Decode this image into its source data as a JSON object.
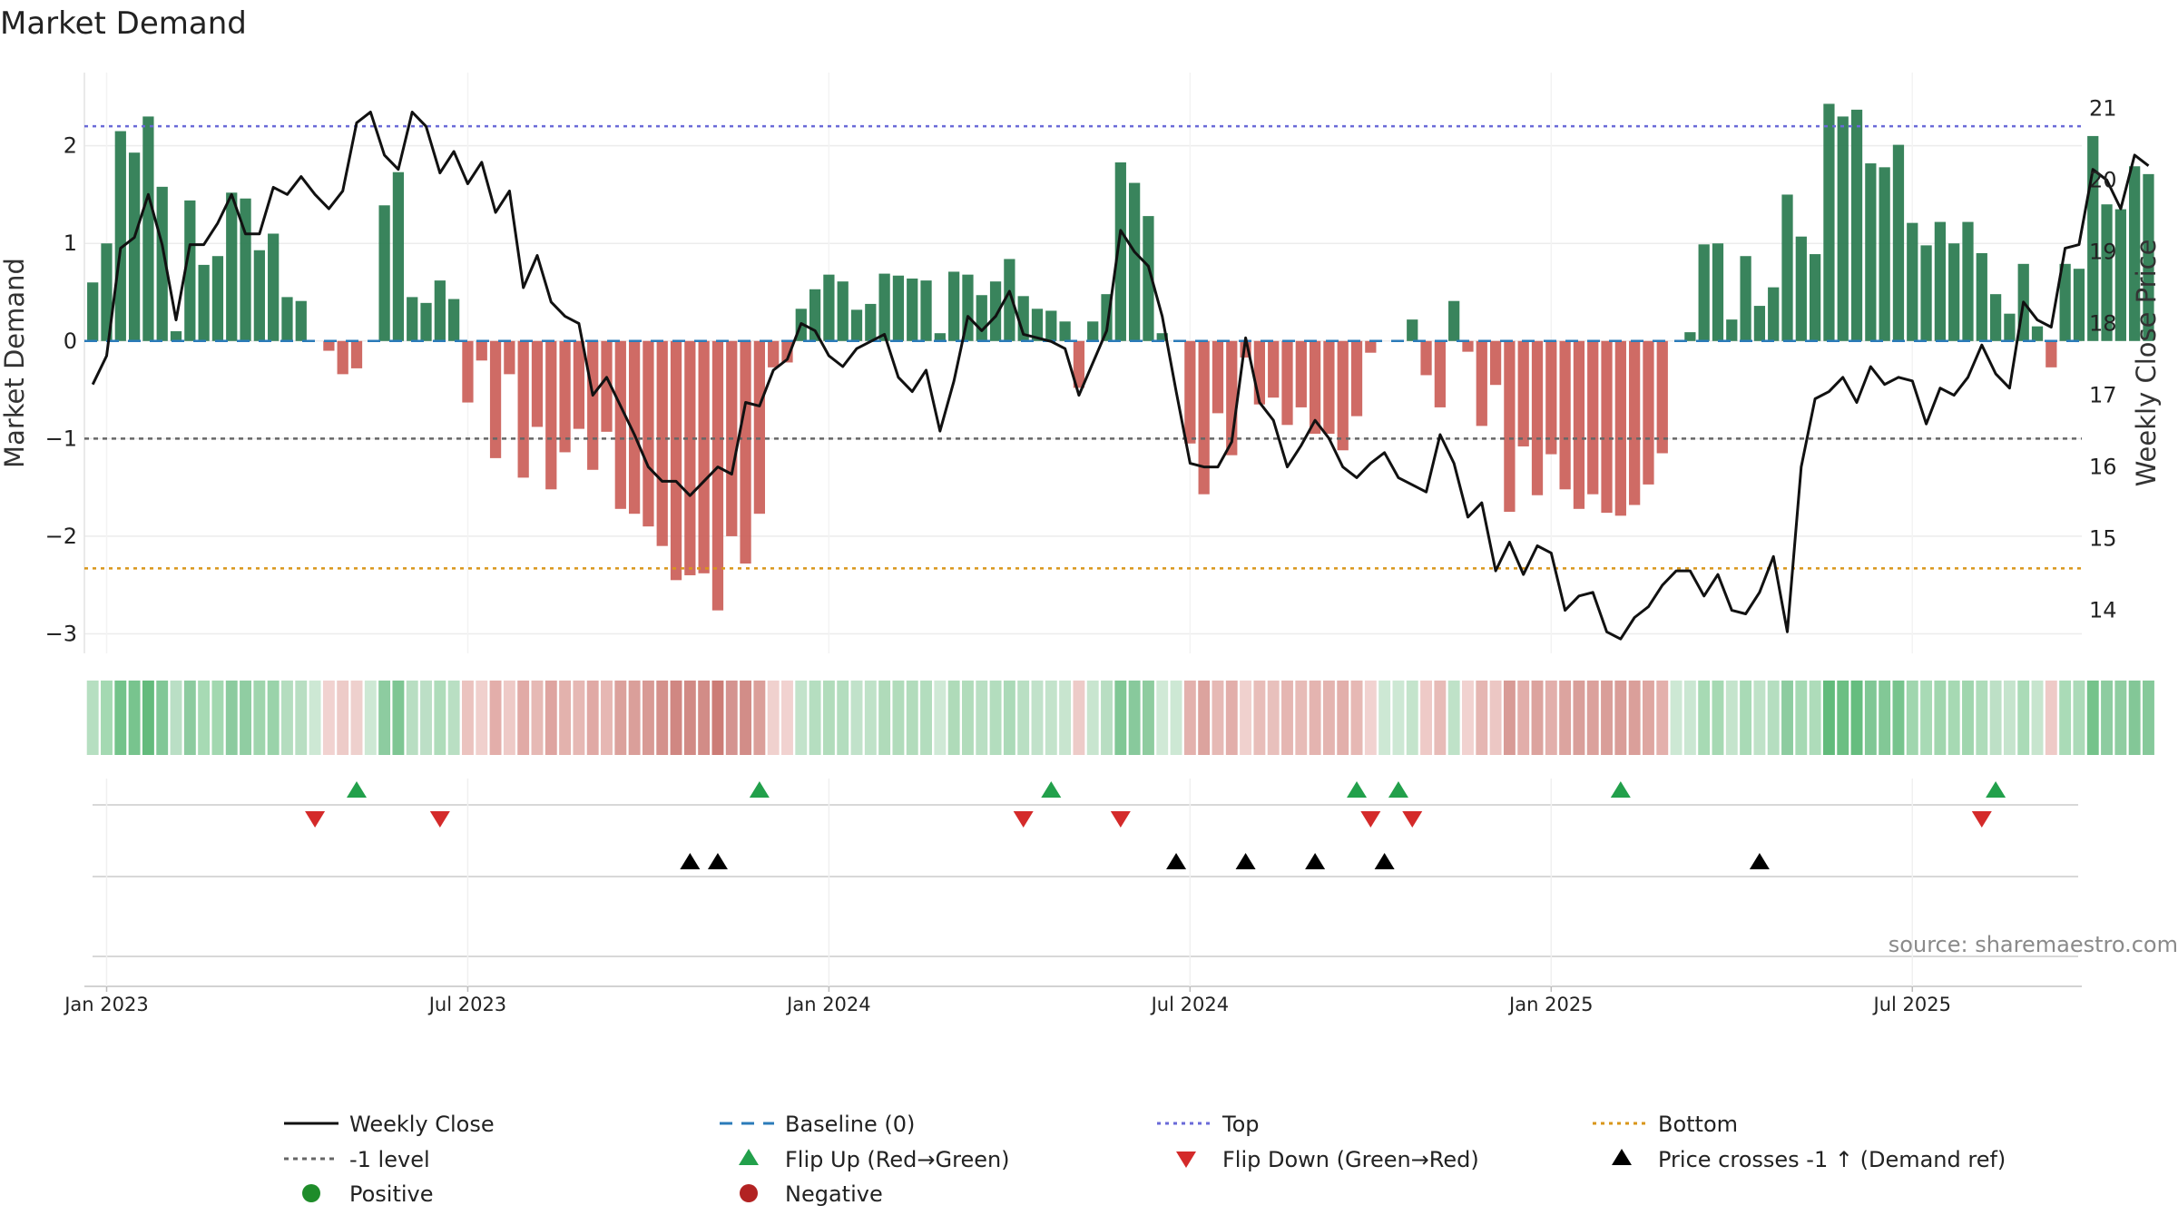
{
  "chart_data": {
    "type": "bar+line",
    "title": "Market Demand",
    "ylabel_left": "Market Demand",
    "ylabel_right": "Weekly Close Price",
    "source": "source: sharemaestro.com",
    "left_axis": {
      "ticks": [
        2,
        1,
        0,
        -1,
        -2,
        -3
      ],
      "tick_labels": [
        "2",
        "1",
        "0",
        "−1",
        "−2",
        "−3"
      ],
      "ylim": [
        -3.2,
        2.75
      ]
    },
    "right_axis": {
      "ticks": [
        21,
        20,
        19,
        18,
        17,
        16,
        15,
        14
      ],
      "tick_labels": [
        "21",
        "20",
        "19",
        "18",
        "17",
        "16",
        "15",
        "14"
      ],
      "ylim": [
        13.4,
        21.5
      ]
    },
    "x_ticks": [
      {
        "week": 1,
        "label": "Jan 2023"
      },
      {
        "week": 27,
        "label": "Jul 2023"
      },
      {
        "week": 53,
        "label": "Jan 2024"
      },
      {
        "week": 79,
        "label": "Jul 2024"
      },
      {
        "week": 105,
        "label": "Jan 2025"
      },
      {
        "week": 131,
        "label": "Jul 2025"
      }
    ],
    "x_range_weeks": [
      -0.6,
      143.2
    ],
    "reference_lines": {
      "baseline": 0,
      "top": 2.2,
      "minus_one": -1,
      "bottom": -2.33
    },
    "demand": [
      0.6,
      1.0,
      2.15,
      1.93,
      2.3,
      1.58,
      0.1,
      1.44,
      0.78,
      0.87,
      1.52,
      1.46,
      0.93,
      1.1,
      0.45,
      0.41,
      0.0,
      -0.1,
      -0.34,
      -0.28,
      0.0,
      1.39,
      1.73,
      0.45,
      0.39,
      0.62,
      0.43,
      -0.63,
      -0.2,
      -1.2,
      -0.34,
      -1.4,
      -0.88,
      -1.52,
      -1.14,
      -0.9,
      -1.32,
      -0.93,
      -1.72,
      -1.77,
      -1.9,
      -2.1,
      -2.45,
      -2.4,
      -2.38,
      -2.76,
      -2.0,
      -2.28,
      -1.77,
      -0.27,
      -0.22,
      0.33,
      0.53,
      0.68,
      0.61,
      0.32,
      0.38,
      0.69,
      0.67,
      0.64,
      0.62,
      0.08,
      0.71,
      0.68,
      0.47,
      0.61,
      0.84,
      0.46,
      0.33,
      0.31,
      0.2,
      -0.48,
      0.2,
      0.48,
      1.83,
      1.62,
      1.28,
      0.08,
      0.0,
      -1.05,
      -1.57,
      -0.74,
      -1.17,
      -0.17,
      -0.65,
      -0.58,
      -0.86,
      -0.68,
      -0.95,
      -0.95,
      -1.12,
      -0.77,
      -0.12,
      0.0,
      0.0,
      0.22,
      -0.35,
      -0.68,
      0.41,
      -0.11,
      -0.87,
      -0.45,
      -1.75,
      -1.08,
      -1.58,
      -1.16,
      -1.52,
      -1.72,
      -1.57,
      -1.76,
      -1.79,
      -1.68,
      -1.47,
      -1.15,
      0.0,
      0.09,
      0.99,
      1.0,
      0.22,
      0.87,
      0.36,
      0.55,
      1.5,
      1.07,
      0.89,
      2.43,
      2.3,
      2.37,
      1.82,
      1.78,
      2.01,
      1.21,
      0.98,
      1.22,
      1.0,
      1.22,
      0.9,
      0.48,
      0.28,
      0.79,
      0.15,
      -0.27,
      0.79,
      0.74,
      2.1,
      1.4,
      1.35,
      1.79,
      1.71
    ],
    "weekly_close": [
      17.15,
      17.55,
      19.05,
      19.2,
      19.8,
      19.1,
      18.05,
      19.1,
      19.1,
      19.4,
      19.8,
      19.25,
      19.25,
      19.9,
      19.8,
      20.05,
      19.8,
      19.6,
      19.85,
      20.8,
      20.95,
      20.35,
      20.15,
      20.95,
      20.75,
      20.1,
      20.4,
      19.95,
      20.25,
      19.55,
      19.85,
      18.5,
      18.95,
      18.3,
      18.1,
      18.0,
      17.0,
      17.25,
      16.85,
      16.45,
      16.0,
      15.8,
      15.8,
      15.6,
      15.8,
      16.0,
      15.9,
      16.9,
      16.85,
      17.35,
      17.5,
      18.0,
      17.9,
      17.55,
      17.4,
      17.65,
      17.75,
      17.85,
      17.25,
      17.05,
      17.35,
      16.5,
      17.2,
      18.1,
      17.9,
      18.1,
      18.45,
      17.85,
      17.8,
      17.75,
      17.65,
      17.0,
      17.45,
      17.9,
      19.3,
      19.0,
      18.8,
      18.1,
      17.05,
      16.05,
      16.0,
      16.0,
      16.35,
      17.8,
      16.9,
      16.65,
      16.0,
      16.3,
      16.65,
      16.4,
      16.0,
      15.85,
      16.05,
      16.2,
      15.85,
      15.75,
      15.65,
      16.45,
      16.05,
      15.3,
      15.5,
      14.55,
      14.95,
      14.5,
      14.9,
      14.8,
      14.0,
      14.2,
      14.25,
      13.7,
      13.6,
      13.9,
      14.05,
      14.35,
      14.55,
      14.55,
      14.2,
      14.5,
      14.0,
      13.95,
      14.25,
      14.75,
      13.7,
      16.0,
      16.95,
      17.05,
      17.25,
      16.9,
      17.4,
      17.15,
      17.25,
      17.2,
      16.6,
      17.1,
      17.0,
      17.25,
      17.7,
      17.3,
      17.1,
      18.3,
      18.05,
      17.95,
      19.05,
      19.1,
      20.15,
      20.0,
      19.6,
      20.35,
      20.2
    ],
    "ribbon_colors": [
      "#b6dfc1",
      "#a4d9b2",
      "#73c38a",
      "#78c48e",
      "#63bb7c",
      "#81c797",
      "#badfc5",
      "#8ccb9f",
      "#a7dab4",
      "#a2d8b0",
      "#8ccb9f",
      "#90cda2",
      "#9fd5ad",
      "#9ad3aa",
      "#b4ddbf",
      "#b8dec2",
      "#cde8d4",
      "#f1d2d0",
      "#edcbc8",
      "#eed0cd",
      "#cde8d4",
      "#8dcca0",
      "#7ec693",
      "#b8dec2",
      "#bcdfc6",
      "#aedcba",
      "#b9dfc3",
      "#ebc3bf",
      "#f0d0cd",
      "#e3aeaa",
      "#eecac7",
      "#e1aaa6",
      "#e6b9b5",
      "#dea4a0",
      "#e3b2ad",
      "#e6b8b4",
      "#e0a9a5",
      "#e6b7b3",
      "#dba19c",
      "#da9f9a",
      "#d89a95",
      "#d4918c",
      "#d08782",
      "#d18a85",
      "#d28c87",
      "#cc7c76",
      "#d49390",
      "#d28d88",
      "#db9f9a",
      "#f0d1ce",
      "#f1d2d0",
      "#c2e3cb",
      "#b5dec0",
      "#b1dcbb",
      "#b3ddbe",
      "#c1e2ca",
      "#bfe2c8",
      "#b0dbba",
      "#b1dcbb",
      "#b2dcbc",
      "#b3ddbe",
      "#cfe9d6",
      "#afdbb9",
      "#b1dcbb",
      "#b9dfc3",
      "#b3ddbe",
      "#abdab8",
      "#b9dfc3",
      "#c1e2ca",
      "#c3e3cb",
      "#c8e5cf",
      "#edcbc8",
      "#c8e5cf",
      "#b8dec2",
      "#80c795",
      "#88c99c",
      "#8ecc9f",
      "#d0e9d6",
      "#cde8d4",
      "#e3b1ad",
      "#dca39e",
      "#e6b9b5",
      "#e2aeaa",
      "#f0d1ce",
      "#e8bdb9",
      "#e8c0bc",
      "#e5b6b2",
      "#e7bbb7",
      "#e4b4b0",
      "#e4b4b0",
      "#e2afab",
      "#e6b8b4",
      "#f1d2d0",
      "#cde8d4",
      "#cde8d4",
      "#c4e4cc",
      "#eecac7",
      "#e7bbb7",
      "#bfe2c8",
      "#f1d2d0",
      "#e5b6b2",
      "#ecc7c4",
      "#d89b96",
      "#e2aeaa",
      "#dca39e",
      "#e2afab",
      "#dca49f",
      "#d99f9a",
      "#dba19c",
      "#d99e99",
      "#d99d98",
      "#da9f9a",
      "#dea6a1",
      "#e3b0ac",
      "#cde8d4",
      "#cae7d2",
      "#a7dab4",
      "#a6d9b3",
      "#c4e4cc",
      "#a9dab6",
      "#bfe2c8",
      "#b5dec0",
      "#8dcca0",
      "#a5d9b3",
      "#aedcba",
      "#62bb7b",
      "#6cbf83",
      "#66bd7f",
      "#80c795",
      "#82c896",
      "#77c48d",
      "#a0d6ae",
      "#a8dab5",
      "#a0d6ae",
      "#a6d9b3",
      "#a0d6ae",
      "#aedcba",
      "#bde0c6",
      "#c5e4cd",
      "#aadbb7",
      "#c7e5ce",
      "#eecac7",
      "#aadbb7",
      "#abdab8",
      "#75c38b",
      "#8dcca0",
      "#8fcda1",
      "#83c797",
      "#86c99a"
    ],
    "flip_up_weeks": [
      19,
      48,
      69,
      91,
      94,
      110,
      137
    ],
    "flip_down_weeks": [
      16,
      25,
      67,
      74,
      92,
      95,
      136
    ],
    "price_cross_weeks": [
      43,
      45,
      78,
      83,
      88,
      93,
      120
    ],
    "colors": {
      "positive_bar": "#2e7d53",
      "negative_bar": "#c85650",
      "weekly_close": "#111111",
      "baseline": "#2b7bb9",
      "top": "#6a6ad8",
      "minus_one": "#666666",
      "bottom": "#d9961a",
      "flip_up": "#22a04b",
      "flip_down": "#d42a2a",
      "price_cross": "#000000",
      "positive_marker": "#1e8c2a",
      "negative_marker": "#b22222"
    },
    "legend": [
      {
        "label": "Weekly Close",
        "symbol": "line"
      },
      {
        "label": "Baseline (0)",
        "symbol": "dash"
      },
      {
        "label": "Top",
        "symbol": "dot"
      },
      {
        "label": "Bottom",
        "symbol": "dot"
      },
      {
        "label": "-1 level",
        "symbol": "dot"
      },
      {
        "label": "Flip Up (Red→Green)",
        "symbol": "triangle-up"
      },
      {
        "label": "Flip Down (Green→Red)",
        "symbol": "triangle-down"
      },
      {
        "label": "Price crosses -1 ↑ (Demand ref)",
        "symbol": "triangle-up"
      },
      {
        "label": "Positive",
        "symbol": "circle"
      },
      {
        "label": "Negative",
        "symbol": "circle"
      }
    ]
  }
}
